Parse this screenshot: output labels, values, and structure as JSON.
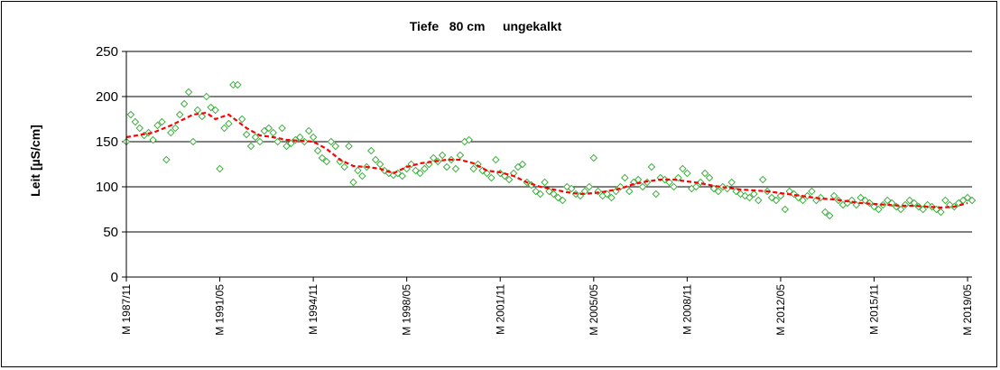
{
  "chart_data": {
    "type": "scatter",
    "title": "Tiefe   80 cm     ungekalkt",
    "ylabel": "Leit [µS/cm]",
    "xlabel": "",
    "ylim": [
      0,
      250
    ],
    "yticks": [
      0,
      50,
      100,
      150,
      200,
      250
    ],
    "xlim": [
      "1987-11",
      "2019-07"
    ],
    "x_tick_labels": [
      {
        "label": "M 1987/11",
        "date": "1987-11"
      },
      {
        "label": "M 1991/05",
        "date": "1991-05"
      },
      {
        "label": "M 1994/11",
        "date": "1994-11"
      },
      {
        "label": "M 1998/05",
        "date": "1998-05"
      },
      {
        "label": "M 2001/11",
        "date": "2001-11"
      },
      {
        "label": "M 2005/05",
        "date": "2005-05"
      },
      {
        "label": "M 2008/11",
        "date": "2008-11"
      },
      {
        "label": "M 2012/05",
        "date": "2012-05"
      },
      {
        "label": "M 2015/11",
        "date": "2015-11"
      },
      {
        "label": "M 2019/05",
        "date": "2019-05"
      }
    ],
    "grid": "horizontal",
    "colors": {
      "points": "#33aa33",
      "trend": "#ff0000",
      "grid": "#000000"
    },
    "series": [
      {
        "kind": "points",
        "marker": "diamond",
        "points": [
          [
            "1987-11",
            150
          ],
          [
            "1988-01",
            180
          ],
          [
            "1988-03",
            172
          ],
          [
            "1988-05",
            165
          ],
          [
            "1988-07",
            157
          ],
          [
            "1988-09",
            160
          ],
          [
            "1988-11",
            152
          ],
          [
            "1989-01",
            168
          ],
          [
            "1989-03",
            172
          ],
          [
            "1989-05",
            130
          ],
          [
            "1989-07",
            160
          ],
          [
            "1989-09",
            165
          ],
          [
            "1989-11",
            180
          ],
          [
            "1990-01",
            192
          ],
          [
            "1990-03",
            205
          ],
          [
            "1990-05",
            150
          ],
          [
            "1990-07",
            185
          ],
          [
            "1990-09",
            178
          ],
          [
            "1990-11",
            200
          ],
          [
            "1991-01",
            188
          ],
          [
            "1991-03",
            185
          ],
          [
            "1991-05",
            120
          ],
          [
            "1991-07",
            165
          ],
          [
            "1991-09",
            170
          ],
          [
            "1991-11",
            213
          ],
          [
            "1992-01",
            213
          ],
          [
            "1992-03",
            175
          ],
          [
            "1992-05",
            158
          ],
          [
            "1992-07",
            145
          ],
          [
            "1992-09",
            155
          ],
          [
            "1992-11",
            150
          ],
          [
            "1993-01",
            162
          ],
          [
            "1993-03",
            165
          ],
          [
            "1993-05",
            160
          ],
          [
            "1993-07",
            150
          ],
          [
            "1993-09",
            165
          ],
          [
            "1993-11",
            145
          ],
          [
            "1994-01",
            148
          ],
          [
            "1994-03",
            152
          ],
          [
            "1994-05",
            155
          ],
          [
            "1994-07",
            150
          ],
          [
            "1994-09",
            162
          ],
          [
            "1994-11",
            155
          ],
          [
            "1995-01",
            140
          ],
          [
            "1995-03",
            132
          ],
          [
            "1995-05",
            128
          ],
          [
            "1995-07",
            150
          ],
          [
            "1995-09",
            145
          ],
          [
            "1995-11",
            128
          ],
          [
            "1996-01",
            122
          ],
          [
            "1996-03",
            145
          ],
          [
            "1996-05",
            105
          ],
          [
            "1996-07",
            118
          ],
          [
            "1996-09",
            112
          ],
          [
            "1996-11",
            122
          ],
          [
            "1997-01",
            140
          ],
          [
            "1997-03",
            130
          ],
          [
            "1997-05",
            125
          ],
          [
            "1997-07",
            118
          ],
          [
            "1997-09",
            115
          ],
          [
            "1997-11",
            113
          ],
          [
            "1998-01",
            115
          ],
          [
            "1998-03",
            112
          ],
          [
            "1998-05",
            120
          ],
          [
            "1998-07",
            125
          ],
          [
            "1998-09",
            118
          ],
          [
            "1998-11",
            115
          ],
          [
            "1999-01",
            120
          ],
          [
            "1999-03",
            125
          ],
          [
            "1999-05",
            132
          ],
          [
            "1999-07",
            128
          ],
          [
            "1999-09",
            135
          ],
          [
            "1999-11",
            122
          ],
          [
            "2000-01",
            130
          ],
          [
            "2000-03",
            120
          ],
          [
            "2000-05",
            135
          ],
          [
            "2000-07",
            150
          ],
          [
            "2000-09",
            152
          ],
          [
            "2000-11",
            120
          ],
          [
            "2001-01",
            125
          ],
          [
            "2001-03",
            118
          ],
          [
            "2001-05",
            115
          ],
          [
            "2001-07",
            110
          ],
          [
            "2001-09",
            130
          ],
          [
            "2001-11",
            115
          ],
          [
            "2002-01",
            112
          ],
          [
            "2002-03",
            108
          ],
          [
            "2002-05",
            115
          ],
          [
            "2002-07",
            122
          ],
          [
            "2002-09",
            125
          ],
          [
            "2002-11",
            105
          ],
          [
            "2003-01",
            102
          ],
          [
            "2003-03",
            95
          ],
          [
            "2003-05",
            92
          ],
          [
            "2003-07",
            105
          ],
          [
            "2003-09",
            95
          ],
          [
            "2003-11",
            92
          ],
          [
            "2004-01",
            88
          ],
          [
            "2004-03",
            85
          ],
          [
            "2004-05",
            100
          ],
          [
            "2004-07",
            98
          ],
          [
            "2004-09",
            92
          ],
          [
            "2004-11",
            90
          ],
          [
            "2005-01",
            95
          ],
          [
            "2005-03",
            100
          ],
          [
            "2005-05",
            132
          ],
          [
            "2005-07",
            95
          ],
          [
            "2005-09",
            90
          ],
          [
            "2005-11",
            92
          ],
          [
            "2006-01",
            88
          ],
          [
            "2006-03",
            95
          ],
          [
            "2006-05",
            100
          ],
          [
            "2006-07",
            110
          ],
          [
            "2006-09",
            95
          ],
          [
            "2006-11",
            105
          ],
          [
            "2007-01",
            108
          ],
          [
            "2007-03",
            100
          ],
          [
            "2007-05",
            105
          ],
          [
            "2007-07",
            122
          ],
          [
            "2007-09",
            92
          ],
          [
            "2007-11",
            110
          ],
          [
            "2008-01",
            108
          ],
          [
            "2008-03",
            105
          ],
          [
            "2008-05",
            100
          ],
          [
            "2008-07",
            110
          ],
          [
            "2008-09",
            120
          ],
          [
            "2008-11",
            115
          ],
          [
            "2009-01",
            98
          ],
          [
            "2009-03",
            100
          ],
          [
            "2009-05",
            105
          ],
          [
            "2009-07",
            115
          ],
          [
            "2009-09",
            110
          ],
          [
            "2009-11",
            98
          ],
          [
            "2010-01",
            95
          ],
          [
            "2010-03",
            100
          ],
          [
            "2010-05",
            98
          ],
          [
            "2010-07",
            105
          ],
          [
            "2010-09",
            95
          ],
          [
            "2010-11",
            92
          ],
          [
            "2011-01",
            90
          ],
          [
            "2011-03",
            88
          ],
          [
            "2011-05",
            92
          ],
          [
            "2011-07",
            85
          ],
          [
            "2011-09",
            108
          ],
          [
            "2011-11",
            95
          ],
          [
            "2012-01",
            88
          ],
          [
            "2012-03",
            85
          ],
          [
            "2012-05",
            90
          ],
          [
            "2012-07",
            75
          ],
          [
            "2012-09",
            95
          ],
          [
            "2012-11",
            92
          ],
          [
            "2013-01",
            88
          ],
          [
            "2013-03",
            85
          ],
          [
            "2013-05",
            90
          ],
          [
            "2013-07",
            95
          ],
          [
            "2013-09",
            85
          ],
          [
            "2013-11",
            88
          ],
          [
            "2014-01",
            72
          ],
          [
            "2014-03",
            68
          ],
          [
            "2014-05",
            90
          ],
          [
            "2014-07",
            85
          ],
          [
            "2014-09",
            80
          ],
          [
            "2014-11",
            82
          ],
          [
            "2015-01",
            85
          ],
          [
            "2015-03",
            80
          ],
          [
            "2015-05",
            88
          ],
          [
            "2015-07",
            85
          ],
          [
            "2015-09",
            82
          ],
          [
            "2015-11",
            78
          ],
          [
            "2016-01",
            75
          ],
          [
            "2016-03",
            80
          ],
          [
            "2016-05",
            85
          ],
          [
            "2016-07",
            82
          ],
          [
            "2016-09",
            78
          ],
          [
            "2016-11",
            75
          ],
          [
            "2017-01",
            80
          ],
          [
            "2017-03",
            85
          ],
          [
            "2017-05",
            82
          ],
          [
            "2017-07",
            78
          ],
          [
            "2017-09",
            75
          ],
          [
            "2017-11",
            80
          ],
          [
            "2018-01",
            78
          ],
          [
            "2018-03",
            75
          ],
          [
            "2018-05",
            72
          ],
          [
            "2018-07",
            85
          ],
          [
            "2018-09",
            80
          ],
          [
            "2018-11",
            78
          ],
          [
            "2019-01",
            82
          ],
          [
            "2019-03",
            85
          ],
          [
            "2019-05",
            88
          ],
          [
            "2019-07",
            85
          ]
        ]
      },
      {
        "kind": "trend",
        "points": [
          [
            "1987-11",
            155
          ],
          [
            "1988-11",
            160
          ],
          [
            "1989-07",
            168
          ],
          [
            "1990-05",
            180
          ],
          [
            "1990-11",
            182
          ],
          [
            "1991-03",
            175
          ],
          [
            "1991-09",
            180
          ],
          [
            "1992-05",
            165
          ],
          [
            "1992-11",
            157
          ],
          [
            "1993-05",
            155
          ],
          [
            "1993-11",
            152
          ],
          [
            "1994-11",
            150
          ],
          [
            "1995-05",
            142
          ],
          [
            "1995-11",
            130
          ],
          [
            "1996-05",
            123
          ],
          [
            "1996-11",
            122
          ],
          [
            "1997-05",
            120
          ],
          [
            "1997-11",
            115
          ],
          [
            "1998-05",
            122
          ],
          [
            "1998-11",
            126
          ],
          [
            "1999-05",
            128
          ],
          [
            "1999-11",
            130
          ],
          [
            "2000-05",
            130
          ],
          [
            "2000-11",
            126
          ],
          [
            "2001-05",
            118
          ],
          [
            "2001-11",
            116
          ],
          [
            "2002-05",
            112
          ],
          [
            "2002-11",
            105
          ],
          [
            "2003-05",
            100
          ],
          [
            "2003-11",
            97
          ],
          [
            "2004-05",
            94
          ],
          [
            "2004-11",
            92
          ],
          [
            "2005-05",
            93
          ],
          [
            "2005-11",
            95
          ],
          [
            "2006-05",
            98
          ],
          [
            "2006-11",
            103
          ],
          [
            "2007-05",
            106
          ],
          [
            "2007-11",
            108
          ],
          [
            "2008-05",
            108
          ],
          [
            "2008-11",
            106
          ],
          [
            "2009-05",
            104
          ],
          [
            "2009-11",
            101
          ],
          [
            "2010-05",
            99
          ],
          [
            "2010-11",
            97
          ],
          [
            "2011-05",
            96
          ],
          [
            "2011-11",
            95
          ],
          [
            "2012-05",
            93
          ],
          [
            "2012-11",
            91
          ],
          [
            "2013-05",
            89
          ],
          [
            "2013-11",
            87
          ],
          [
            "2014-05",
            86
          ],
          [
            "2014-11",
            84
          ],
          [
            "2015-05",
            82
          ],
          [
            "2015-11",
            81
          ],
          [
            "2016-05",
            80
          ],
          [
            "2016-11",
            79
          ],
          [
            "2017-05",
            79
          ],
          [
            "2017-11",
            78
          ],
          [
            "2018-05",
            77
          ],
          [
            "2018-11",
            78
          ],
          [
            "2019-05",
            82
          ]
        ]
      }
    ]
  }
}
